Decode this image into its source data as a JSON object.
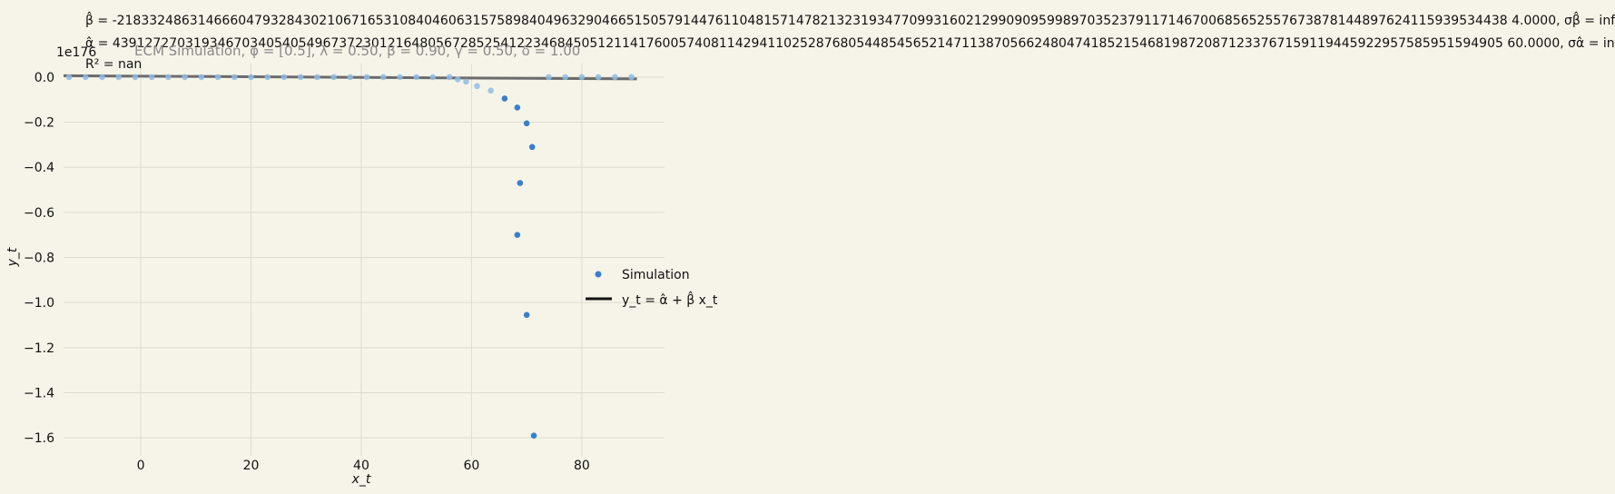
{
  "chart_data": {
    "type": "scatter",
    "title": "ECM Simulation, φ = [0.5], λ = 0.50, β = 0.90, γ = 0.50, δ = 1.00",
    "xlabel": "x_t",
    "ylabel": "y_t",
    "scale_label": "1e176",
    "annotations": {
      "beta_line": "β̂ = -2183324863146660479328430210671653108404606315758984049632904665150579144761104815714782132319347709931602129909095998970352379117146700685652557673878144897624115939534438 4.0000, σβ̂ = inf",
      "alpha_line": "α̂ = 4391272703193467034054054967372301216480567285254122346845051211417600574081142941102528768054485456521471138705662480474185215468198720871233767159119445922957585951594905 60.0000, σα̂ = inf",
      "r2_line": "R² = nan"
    },
    "xlim": [
      -14,
      95
    ],
    "ylim": [
      -1.68,
      0.06
    ],
    "xticks": [
      0,
      20,
      40,
      60,
      80
    ],
    "xtick_labels": [
      "0",
      "20",
      "40",
      "60",
      "80"
    ],
    "yticks": [
      0.0,
      -0.2,
      -0.4,
      -0.6,
      -0.8,
      -1.0,
      -1.2,
      -1.4,
      -1.6
    ],
    "ytick_labels": [
      "0.0",
      "−0.2",
      "−0.4",
      "−0.6",
      "−0.8",
      "−1.0",
      "−1.2",
      "−1.4",
      "−1.6"
    ],
    "grid": true,
    "legend_position": "center-right",
    "series": [
      {
        "name": "Simulation",
        "color": "#3a7fcc",
        "x": [
          -13,
          -10,
          -7,
          -4,
          -1,
          2,
          5,
          8,
          11,
          14,
          17,
          20,
          23,
          26,
          29,
          32,
          35,
          38,
          41,
          44,
          47,
          50,
          53,
          56,
          57.5,
          59,
          61,
          63.5,
          66,
          68.3,
          70,
          71,
          68.8,
          68.3,
          70,
          71.3,
          74,
          77,
          80,
          83,
          86,
          89
        ],
        "y": [
          0,
          0,
          0,
          0,
          0,
          0,
          0,
          0,
          0,
          0,
          0,
          0,
          0,
          0,
          0,
          0,
          0,
          0,
          0,
          0,
          0,
          0,
          0,
          0,
          -0.01,
          -0.02,
          -0.04,
          -0.06,
          -0.095,
          -0.135,
          -0.205,
          -0.31,
          -0.47,
          -0.7,
          -1.055,
          -1.59,
          0,
          0,
          0,
          0,
          0,
          0
        ]
      }
    ],
    "fit_line": {
      "name": "y_t = α̂ + β̂ x_t",
      "color": "#6b6b6b",
      "x": [
        -14,
        90
      ],
      "y": [
        0.006,
        -0.008
      ]
    }
  }
}
